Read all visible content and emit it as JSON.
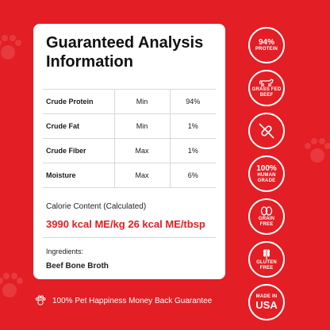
{
  "title": {
    "line1": "Guaranteed Analysis",
    "line2": "Information"
  },
  "analysis": [
    {
      "name": "Crude Protein",
      "comparator": "Min",
      "value": "94%"
    },
    {
      "name": "Crude Fat",
      "comparator": "Min",
      "value": "1%"
    },
    {
      "name": "Crude Fiber",
      "comparator": "Max",
      "value": "1%"
    },
    {
      "name": "Moisture",
      "comparator": "Max",
      "value": "6%"
    }
  ],
  "calorie": {
    "label": "Calorie Content (Calculated)",
    "value": "3990 kcal ME/kg 26 kcal ME/tbsp"
  },
  "ingredients": {
    "label": "Ingredients:",
    "value": "Beef Bone Broth"
  },
  "guarantee": {
    "text": "100% Pet Happiness Money Back Guarantee",
    "icon": "paw-icon"
  },
  "badges": [
    {
      "id": "protein",
      "big": "94%",
      "small": "PROTEIN"
    },
    {
      "id": "grass-fed",
      "icon": "cow-icon",
      "small": "GRASS FED BEEF"
    },
    {
      "id": "no-pill",
      "icon": "no-pill-icon"
    },
    {
      "id": "human-grade",
      "big": "100%",
      "small": "HUMAN GRADE"
    },
    {
      "id": "grain-free",
      "icon": "bean-icon",
      "small": "GRAIN FREE"
    },
    {
      "id": "gluten-free",
      "icon": "wheat-icon",
      "small": "GLUTEN FREE"
    },
    {
      "id": "made-in-usa",
      "small": "MADE IN",
      "big": "USA"
    }
  ],
  "colors": {
    "background": "#e31e24",
    "card": "#ffffff",
    "accent": "#e31e24"
  }
}
